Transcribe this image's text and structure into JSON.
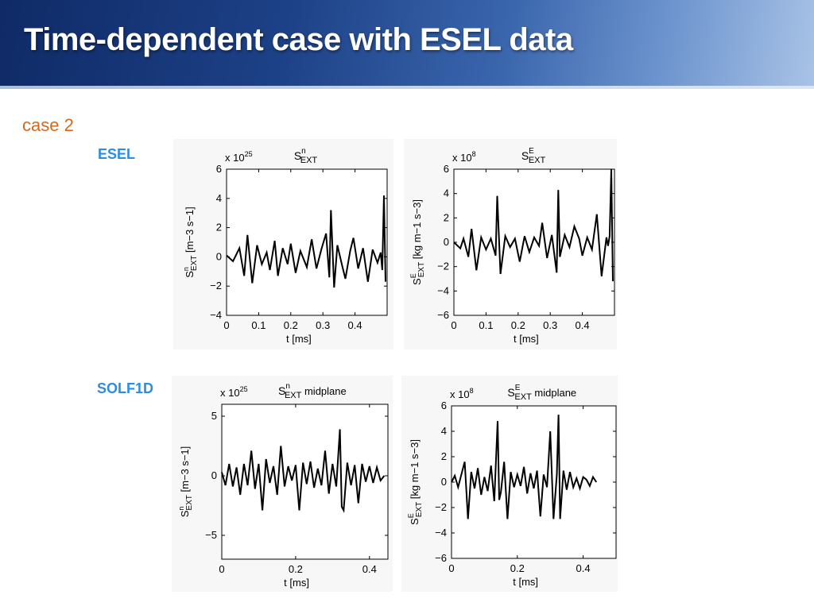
{
  "slide": {
    "title": "Time-dependent case with ESEL data",
    "case_label": "case 2",
    "row_labels": [
      "ESEL",
      "SOLF1D"
    ]
  },
  "colors": {
    "title_text": "#ffffff",
    "case_label": "#d2691e",
    "row_label": "#2d8de0",
    "trace": "#000000"
  },
  "chart_data": [
    {
      "type": "line",
      "title_main": "S",
      "title_sup": "n",
      "title_sub": "EXT",
      "title_suffix": "",
      "multiplier": "x 10",
      "multiplier_exp": "25",
      "ylabel_main": "S",
      "ylabel_sup": "n",
      "ylabel_sub": "EXT",
      "ylabel_units": "[m−3 s−1]",
      "xlabel": "t [ms]",
      "xlim": [
        0,
        0.5
      ],
      "ylim": [
        -4,
        6
      ],
      "xticks": [
        "0",
        "0.1",
        "0.2",
        "0.3",
        "0.4"
      ],
      "xtick_values": [
        0,
        0.1,
        0.2,
        0.3,
        0.4
      ],
      "yticks": [
        "−4",
        "−2",
        "0",
        "2",
        "4",
        "6"
      ],
      "ytick_values": [
        -4,
        -2,
        0,
        2,
        4,
        6
      ],
      "grid": false,
      "series": [
        {
          "x": [
            0,
            0.02,
            0.04,
            0.055,
            0.065,
            0.08,
            0.095,
            0.11,
            0.125,
            0.135,
            0.15,
            0.16,
            0.175,
            0.19,
            0.2,
            0.215,
            0.23,
            0.25,
            0.265,
            0.28,
            0.295,
            0.31,
            0.32,
            0.325,
            0.335,
            0.345,
            0.36,
            0.37,
            0.385,
            0.395,
            0.41,
            0.425,
            0.44,
            0.455,
            0.47,
            0.48,
            0.485,
            0.49,
            0.495
          ],
          "y": [
            0.1,
            -0.3,
            0.6,
            -1.3,
            1.5,
            -1.8,
            0.8,
            -0.5,
            0.3,
            -0.9,
            1.1,
            -1.3,
            0.6,
            -0.5,
            0.9,
            -1.1,
            0.4,
            -0.7,
            1.2,
            -0.8,
            0.5,
            1.6,
            -1.4,
            3.2,
            -2.1,
            0.8,
            -0.6,
            -1.5,
            0.4,
            1.3,
            -0.8,
            0.6,
            -1.7,
            0.5,
            -0.4,
            0.3,
            -0.9,
            4.2,
            -1.7
          ]
        }
      ]
    },
    {
      "type": "line",
      "title_main": "S",
      "title_sup": "E",
      "title_sub": "EXT",
      "title_suffix": "",
      "multiplier": "x 10",
      "multiplier_exp": "8",
      "ylabel_main": "S",
      "ylabel_sup": "E",
      "ylabel_sub": "EXT",
      "ylabel_units": "[kg m−1 s−3]",
      "xlabel": "t [ms]",
      "xlim": [
        0,
        0.5
      ],
      "ylim": [
        -6,
        6
      ],
      "xticks": [
        "0",
        "0.1",
        "0.2",
        "0.3",
        "0.4"
      ],
      "xtick_values": [
        0,
        0.1,
        0.2,
        0.3,
        0.4
      ],
      "yticks": [
        "−6",
        "−4",
        "−2",
        "0",
        "2",
        "4",
        "6"
      ],
      "ytick_values": [
        -6,
        -4,
        -2,
        0,
        2,
        4,
        6
      ],
      "grid": false,
      "series": [
        {
          "x": [
            0,
            0.02,
            0.03,
            0.045,
            0.055,
            0.07,
            0.085,
            0.1,
            0.115,
            0.13,
            0.135,
            0.145,
            0.16,
            0.175,
            0.19,
            0.205,
            0.22,
            0.235,
            0.25,
            0.265,
            0.275,
            0.29,
            0.305,
            0.32,
            0.325,
            0.33,
            0.345,
            0.36,
            0.375,
            0.39,
            0.4,
            0.415,
            0.43,
            0.445,
            0.46,
            0.475,
            0.48,
            0.485,
            0.49,
            0.495
          ],
          "y": [
            0,
            -0.5,
            0.3,
            -1.2,
            1.1,
            -2.3,
            0.4,
            -0.6,
            0.3,
            -1.1,
            3.8,
            -2.6,
            0.5,
            -0.4,
            0.3,
            -1.6,
            0.5,
            -0.8,
            0.4,
            -0.3,
            1.6,
            -1.3,
            0.6,
            -2.5,
            4.3,
            -1.2,
            0.6,
            -0.4,
            1.3,
            0.3,
            -1.1,
            0.4,
            -0.6,
            2.3,
            -2.8,
            0.4,
            -0.3,
            0.5,
            6,
            -3.2
          ]
        }
      ]
    },
    {
      "type": "line",
      "title_main": "S",
      "title_sup": "n",
      "title_sub": "EXT",
      "title_suffix": "midplane",
      "multiplier": "x 10",
      "multiplier_exp": "25",
      "ylabel_main": "S",
      "ylabel_sup": "n",
      "ylabel_sub": "EXT",
      "ylabel_units": "[m−3 s−1]",
      "xlabel": "t [ms]",
      "xlim": [
        0,
        0.45
      ],
      "ylim": [
        -7,
        6
      ],
      "xticks": [
        "0",
        "0.2",
        "0.4"
      ],
      "xtick_values": [
        0,
        0.2,
        0.4
      ],
      "yticks": [
        "−5",
        "0",
        "5"
      ],
      "ytick_values": [
        -5,
        0,
        5
      ],
      "grid": false,
      "series": [
        {
          "x": [
            0,
            0.01,
            0.02,
            0.03,
            0.04,
            0.05,
            0.06,
            0.07,
            0.08,
            0.09,
            0.1,
            0.11,
            0.12,
            0.13,
            0.14,
            0.15,
            0.16,
            0.17,
            0.18,
            0.19,
            0.2,
            0.21,
            0.22,
            0.23,
            0.24,
            0.25,
            0.26,
            0.27,
            0.28,
            0.29,
            0.3,
            0.31,
            0.32,
            0.325,
            0.33,
            0.34,
            0.35,
            0.36,
            0.37,
            0.38,
            0.39,
            0.4,
            0.41,
            0.42,
            0.43,
            0.44
          ],
          "y": [
            0.3,
            -0.8,
            1,
            -0.9,
            0.7,
            -1.6,
            1,
            -0.8,
            2.1,
            -1.1,
            1,
            -2.9,
            1.4,
            -0.6,
            0.8,
            -1.6,
            2.5,
            -0.9,
            0.8,
            -0.4,
            0.9,
            -2.9,
            1.1,
            -0.7,
            1.2,
            -1,
            0.6,
            -0.8,
            2.1,
            -1.5,
            1,
            -0.9,
            3.9,
            -2.6,
            -2.9,
            1.1,
            -0.8,
            0.9,
            -2.3,
            1,
            -0.5,
            0.8,
            -0.6,
            0.7,
            -0.4,
            0
          ]
        }
      ]
    },
    {
      "type": "line",
      "title_main": "S",
      "title_sup": "E",
      "title_sub": "EXT",
      "title_suffix": "midplane",
      "multiplier": "x 10",
      "multiplier_exp": "8",
      "ylabel_main": "S",
      "ylabel_sup": "E",
      "ylabel_sub": "EXT",
      "ylabel_units": "[kg m−1 s−3]",
      "xlabel": "t [ms]",
      "xlim": [
        0,
        0.5
      ],
      "ylim": [
        -6,
        6
      ],
      "xticks": [
        "0",
        "0.2",
        "0.4"
      ],
      "xtick_values": [
        0,
        0.2,
        0.4
      ],
      "yticks": [
        "−6",
        "−4",
        "−2",
        "0",
        "2",
        "4",
        "6"
      ],
      "ytick_values": [
        -6,
        -4,
        -2,
        0,
        2,
        4,
        6
      ],
      "grid": false,
      "series": [
        {
          "x": [
            0,
            0.01,
            0.02,
            0.03,
            0.04,
            0.05,
            0.06,
            0.07,
            0.08,
            0.09,
            0.1,
            0.11,
            0.12,
            0.13,
            0.14,
            0.145,
            0.15,
            0.16,
            0.17,
            0.18,
            0.19,
            0.2,
            0.21,
            0.22,
            0.23,
            0.24,
            0.25,
            0.26,
            0.27,
            0.28,
            0.29,
            0.3,
            0.31,
            0.32,
            0.325,
            0.33,
            0.34,
            0.35,
            0.36,
            0.37,
            0.38,
            0.39,
            0.4,
            0.41,
            0.42,
            0.43,
            0.44
          ],
          "y": [
            0,
            0.5,
            -0.4,
            0.6,
            1.6,
            -2.9,
            0.8,
            -0.5,
            1.1,
            -1,
            0.4,
            -0.7,
            1.3,
            -1.5,
            4.8,
            -1.4,
            -0.8,
            1.6,
            -2.9,
            0.8,
            -0.4,
            0.6,
            -0.3,
            1.2,
            -0.9,
            0.7,
            -0.5,
            0.9,
            -2.7,
            0.6,
            -0.4,
            4,
            -2.9,
            0.6,
            5.3,
            -2.9,
            0.9,
            -0.6,
            0.8,
            -0.4,
            0.3,
            -0.5,
            0.4,
            0.2,
            -0.3,
            0.4,
            0
          ]
        }
      ]
    }
  ]
}
